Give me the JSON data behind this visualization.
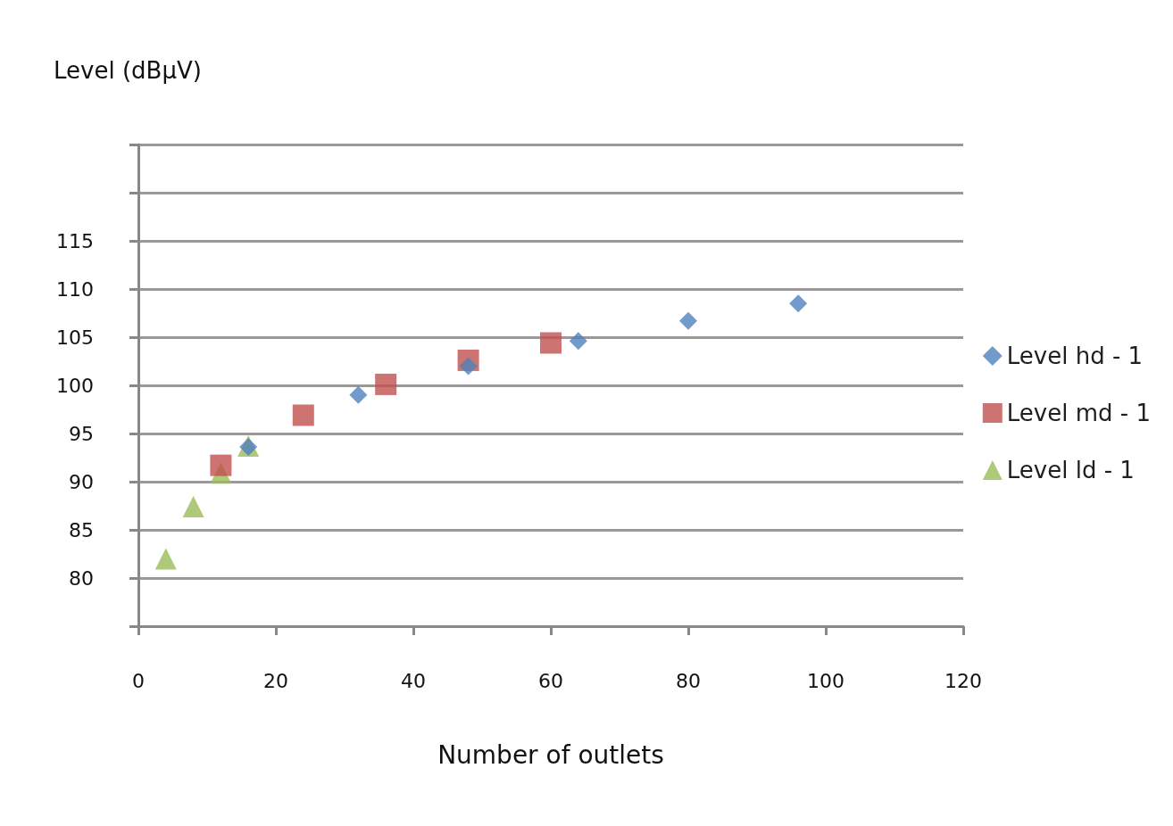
{
  "chart_data": {
    "type": "scatter",
    "xlabel": "Number of outlets",
    "ylabel": "Level (dBµV)",
    "xlim": [
      0,
      120
    ],
    "xticks": [
      0,
      20,
      40,
      60,
      80,
      100,
      120
    ],
    "ylim": [
      75,
      125
    ],
    "yticks": [
      {
        "value": 75,
        "label": null
      },
      80,
      85,
      90,
      95,
      100,
      105,
      110,
      115,
      {
        "value": 120,
        "label": null
      },
      {
        "value": 125,
        "label": null
      }
    ],
    "grid": "y",
    "legend": "right",
    "series": [
      {
        "name": "Level hd - 1",
        "color": "#4f81bd",
        "marker": "diamond",
        "x": [
          16,
          32,
          48,
          64,
          80,
          96
        ],
        "values": [
          93.6,
          99.0,
          102.0,
          104.6,
          106.7,
          108.5
        ]
      },
      {
        "name": "Level md - 1",
        "color": "#c0504d",
        "marker": "square",
        "x": [
          12,
          24,
          36,
          48,
          60
        ],
        "values": [
          91.7,
          96.9,
          100.1,
          102.6,
          104.4
        ]
      },
      {
        "name": "Level ld - 1",
        "color": "#9bbb59",
        "marker": "triangle",
        "x": [
          4,
          8,
          12,
          16
        ],
        "values": [
          82.0,
          87.4,
          90.9,
          93.7
        ]
      }
    ]
  }
}
